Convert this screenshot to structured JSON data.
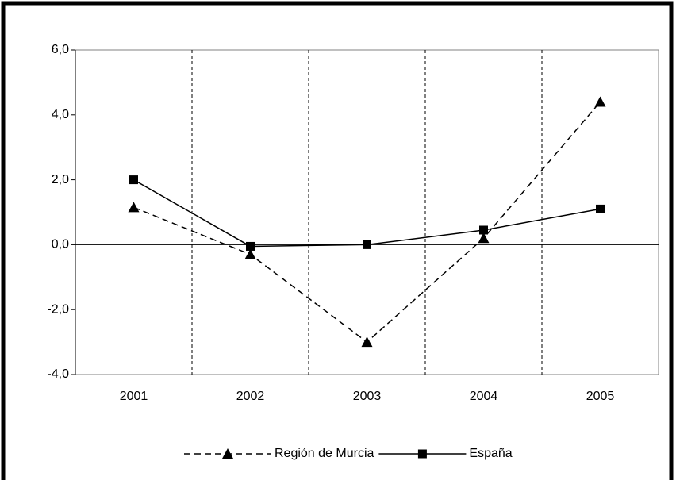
{
  "chart_data": {
    "type": "line",
    "categories": [
      "2001",
      "2002",
      "2003",
      "2004",
      "2005"
    ],
    "series": [
      {
        "name": "Región de Murcia",
        "color": "#000000",
        "style": "dashed",
        "marker": "triangle",
        "values": [
          1.15,
          -0.3,
          -3.0,
          0.2,
          4.4
        ]
      },
      {
        "name": "España",
        "color": "#000000",
        "style": "solid",
        "marker": "square",
        "values": [
          2.0,
          -0.05,
          0.0,
          0.45,
          1.1
        ]
      }
    ],
    "ylim": [
      -4,
      6
    ],
    "yticks": [
      {
        "value": -4,
        "label": "-4,0"
      },
      {
        "value": -2,
        "label": "-2,0"
      },
      {
        "value": 0,
        "label": "0,0"
      },
      {
        "value": 2,
        "label": "2,0"
      },
      {
        "value": 4,
        "label": "4,0"
      },
      {
        "value": 6,
        "label": "6,0"
      }
    ],
    "legend": "bottom"
  }
}
